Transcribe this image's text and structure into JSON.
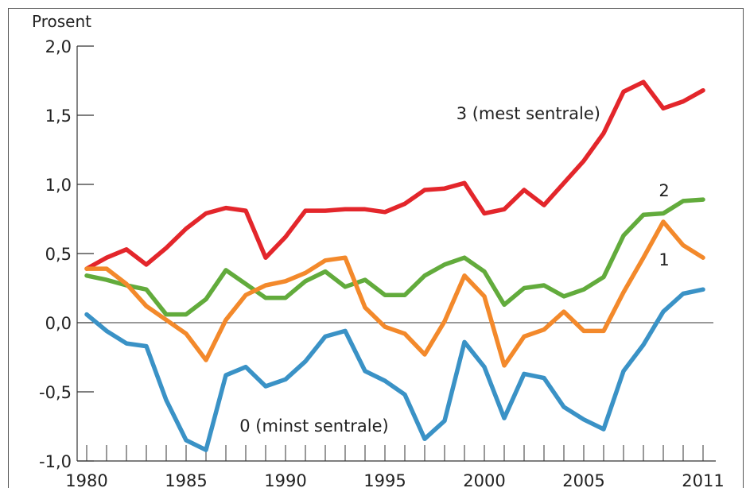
{
  "chart_data": {
    "type": "line",
    "ylabel": "Prosent",
    "ylim": [
      -1.0,
      2.0
    ],
    "xlim": [
      1980,
      2011
    ],
    "y_ticks": [
      2.0,
      1.5,
      1.0,
      0.5,
      0.0,
      -0.5,
      -1.0
    ],
    "y_tick_labels": [
      "2,0",
      "1,5",
      "1,0",
      "0,5",
      "0,0",
      "-0,5",
      "-1,0"
    ],
    "x_ticks": [
      1980,
      1985,
      1990,
      1995,
      2000,
      2005,
      2011
    ],
    "x_tick_labels": [
      "1980",
      "1985",
      "1990",
      "1995",
      "2000",
      "2005",
      "2011"
    ],
    "grid": false,
    "zero_line": true,
    "x": [
      1980,
      1981,
      1982,
      1983,
      1984,
      1985,
      1986,
      1987,
      1988,
      1989,
      1990,
      1991,
      1992,
      1993,
      1994,
      1995,
      1996,
      1997,
      1998,
      1999,
      2000,
      2001,
      2002,
      2003,
      2004,
      2005,
      2006,
      2007,
      2008,
      2009,
      2010,
      2011
    ],
    "series": [
      {
        "name": "3 (mest sentrale)",
        "color": "#e3262b",
        "values": [
          0.39,
          0.47,
          0.53,
          0.42,
          0.54,
          0.68,
          0.79,
          0.83,
          0.81,
          0.47,
          0.62,
          0.81,
          0.81,
          0.82,
          0.82,
          0.8,
          0.86,
          0.96,
          0.97,
          1.01,
          0.79,
          0.82,
          0.96,
          0.85,
          1.01,
          1.17,
          1.37,
          1.67,
          1.74,
          1.55,
          1.6,
          1.68
        ]
      },
      {
        "name": "2",
        "color": "#62ab3c",
        "values": [
          0.34,
          0.31,
          0.27,
          0.24,
          0.06,
          0.06,
          0.17,
          0.38,
          0.28,
          0.18,
          0.18,
          0.3,
          0.37,
          0.26,
          0.31,
          0.2,
          0.2,
          0.34,
          0.42,
          0.47,
          0.37,
          0.13,
          0.25,
          0.27,
          0.19,
          0.24,
          0.33,
          0.63,
          0.78,
          0.79,
          0.88,
          0.89
        ]
      },
      {
        "name": "1",
        "color": "#f3892b",
        "values": [
          0.39,
          0.39,
          0.28,
          0.12,
          0.02,
          -0.08,
          -0.27,
          0.02,
          0.2,
          0.27,
          0.3,
          0.36,
          0.45,
          0.47,
          0.11,
          -0.03,
          -0.08,
          -0.23,
          0.01,
          0.34,
          0.19,
          -0.31,
          -0.1,
          -0.05,
          0.08,
          -0.06,
          -0.06,
          0.22,
          0.47,
          0.73,
          0.56,
          0.47
        ]
      },
      {
        "name": "0 (minst sentrale)",
        "color": "#3a92c6",
        "values": [
          0.06,
          -0.06,
          -0.15,
          -0.17,
          -0.56,
          -0.85,
          -0.92,
          -0.38,
          -0.32,
          -0.46,
          -0.41,
          -0.28,
          -0.1,
          -0.06,
          -0.35,
          -0.42,
          -0.52,
          -0.84,
          -0.71,
          -0.14,
          -0.32,
          -0.69,
          -0.37,
          -0.4,
          -0.61,
          -0.7,
          -0.77,
          -0.35,
          -0.16,
          0.08,
          0.21,
          0.24
        ]
      }
    ],
    "annotations": [
      "3 (mest sentrale)",
      "2",
      "1",
      "0 (minst sentrale)"
    ]
  }
}
